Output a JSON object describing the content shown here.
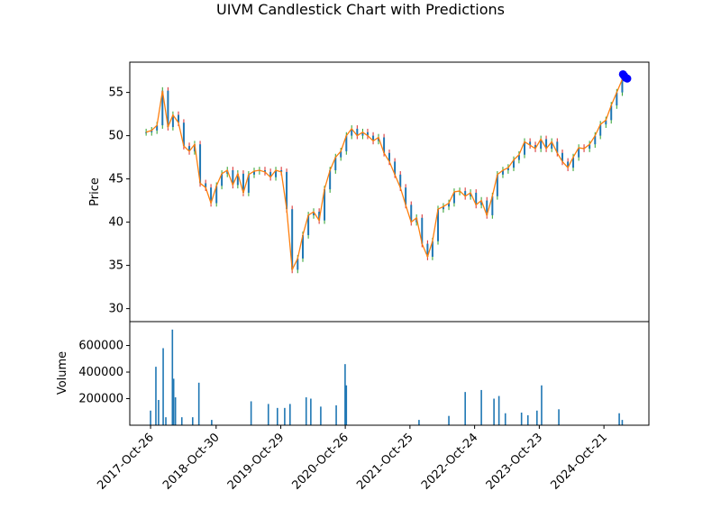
{
  "chart_data": {
    "type": "candlestick",
    "title": "UIVM Candlestick Chart with Predictions",
    "price_panel": {
      "ylabel": "Price",
      "ylim": [
        28.5,
        58.5
      ],
      "yticks": [
        30,
        35,
        40,
        45,
        50,
        55
      ],
      "close_series": [
        [
          "2017-10-01",
          50.4
        ],
        [
          "2017-11-01",
          50.6
        ],
        [
          "2017-12-01",
          51.2
        ],
        [
          "2018-01-01",
          55.2
        ],
        [
          "2018-02-01",
          51.0
        ],
        [
          "2018-03-01",
          52.4
        ],
        [
          "2018-04-01",
          51.5
        ],
        [
          "2018-05-01",
          48.8
        ],
        [
          "2018-06-01",
          48.2
        ],
        [
          "2018-07-01",
          49.0
        ],
        [
          "2018-08-01",
          44.5
        ],
        [
          "2018-09-01",
          44.0
        ],
        [
          "2018-10-01",
          42.2
        ],
        [
          "2018-11-01",
          44.2
        ],
        [
          "2018-12-01",
          45.6
        ],
        [
          "2019-01-01",
          46.0
        ],
        [
          "2019-02-01",
          44.3
        ],
        [
          "2019-03-01",
          45.6
        ],
        [
          "2019-04-01",
          43.4
        ],
        [
          "2019-05-01",
          45.5
        ],
        [
          "2019-06-01",
          45.9
        ],
        [
          "2019-07-01",
          46.0
        ],
        [
          "2019-08-01",
          45.8
        ],
        [
          "2019-09-01",
          45.2
        ],
        [
          "2019-10-01",
          46.0
        ],
        [
          "2019-11-01",
          45.8
        ],
        [
          "2019-12-01",
          41.5
        ],
        [
          "2020-01-01",
          34.5
        ],
        [
          "2020-02-01",
          35.8
        ],
        [
          "2020-03-01",
          38.5
        ],
        [
          "2020-04-01",
          40.8
        ],
        [
          "2020-05-01",
          41.2
        ],
        [
          "2020-06-01",
          40.2
        ],
        [
          "2020-07-01",
          43.8
        ],
        [
          "2020-08-01",
          46.0
        ],
        [
          "2020-09-01",
          47.5
        ],
        [
          "2020-10-01",
          48.2
        ],
        [
          "2020-11-01",
          50.0
        ],
        [
          "2020-12-01",
          50.8
        ],
        [
          "2021-01-01",
          50.0
        ],
        [
          "2021-02-01",
          50.4
        ],
        [
          "2021-03-01",
          50.0
        ],
        [
          "2021-04-01",
          49.4
        ],
        [
          "2021-05-01",
          49.8
        ],
        [
          "2021-06-01",
          48.0
        ],
        [
          "2021-07-01",
          47.0
        ],
        [
          "2021-08-01",
          45.5
        ],
        [
          "2021-09-01",
          44.0
        ],
        [
          "2021-10-01",
          42.0
        ],
        [
          "2021-11-01",
          40.0
        ],
        [
          "2021-12-01",
          40.5
        ],
        [
          "2022-01-01",
          37.5
        ],
        [
          "2022-02-01",
          36.0
        ],
        [
          "2022-03-01",
          37.8
        ],
        [
          "2022-04-01",
          41.5
        ],
        [
          "2022-05-01",
          41.8
        ],
        [
          "2022-06-01",
          42.2
        ],
        [
          "2022-07-01",
          43.5
        ],
        [
          "2022-08-01",
          43.6
        ],
        [
          "2022-09-01",
          43.0
        ],
        [
          "2022-10-01",
          43.4
        ],
        [
          "2022-11-01",
          42.0
        ],
        [
          "2022-12-01",
          42.5
        ],
        [
          "2023-01-01",
          40.8
        ],
        [
          "2023-02-01",
          43.0
        ],
        [
          "2023-03-01",
          45.5
        ],
        [
          "2023-04-01",
          46.0
        ],
        [
          "2023-05-01",
          46.3
        ],
        [
          "2023-06-01",
          47.2
        ],
        [
          "2023-07-01",
          47.8
        ],
        [
          "2023-08-01",
          49.3
        ],
        [
          "2023-09-01",
          48.9
        ],
        [
          "2023-10-01",
          48.5
        ],
        [
          "2023-11-01",
          49.6
        ],
        [
          "2023-12-01",
          48.5
        ],
        [
          "2024-01-01",
          49.3
        ],
        [
          "2024-02-01",
          48.0
        ],
        [
          "2024-03-01",
          47.0
        ],
        [
          "2024-04-01",
          46.3
        ],
        [
          "2024-05-01",
          47.5
        ],
        [
          "2024-06-01",
          48.6
        ],
        [
          "2024-07-01",
          48.5
        ],
        [
          "2024-08-01",
          49.0
        ],
        [
          "2024-09-01",
          50.0
        ],
        [
          "2024-10-01",
          51.3
        ],
        [
          "2024-11-01",
          51.8
        ],
        [
          "2024-12-01",
          53.5
        ],
        [
          "2025-01-01",
          55.0
        ],
        [
          "2025-02-01",
          56.5
        ]
      ],
      "predictions": [
        [
          "2025-02-05",
          57.1
        ],
        [
          "2025-02-12",
          56.9
        ],
        [
          "2025-02-20",
          56.7
        ],
        [
          "2025-03-01",
          56.6
        ]
      ]
    },
    "volume_panel": {
      "ylabel": "Volume",
      "ylim": [
        0,
        780000
      ],
      "yticks": [
        200000,
        400000,
        600000
      ],
      "ytick_labels": [
        "200000",
        "400000",
        "600000"
      ],
      "bars": [
        [
          "2017-10-26",
          110000
        ],
        [
          "2017-11-25",
          440000
        ],
        [
          "2017-12-10",
          190000
        ],
        [
          "2018-01-05",
          580000
        ],
        [
          "2018-01-20",
          60000
        ],
        [
          "2018-02-26",
          720000
        ],
        [
          "2018-03-05",
          350000
        ],
        [
          "2018-03-15",
          210000
        ],
        [
          "2018-04-20",
          60000
        ],
        [
          "2018-06-20",
          60000
        ],
        [
          "2018-07-25",
          320000
        ],
        [
          "2018-10-05",
          40000
        ],
        [
          "2019-05-15",
          180000
        ],
        [
          "2019-08-20",
          160000
        ],
        [
          "2019-10-10",
          130000
        ],
        [
          "2019-11-20",
          130000
        ],
        [
          "2019-12-20",
          160000
        ],
        [
          "2020-03-20",
          210000
        ],
        [
          "2020-04-15",
          200000
        ],
        [
          "2020-06-10",
          140000
        ],
        [
          "2020-09-05",
          150000
        ],
        [
          "2020-10-25",
          460000
        ],
        [
          "2020-11-01",
          300000
        ],
        [
          "2021-12-15",
          40000
        ],
        [
          "2022-06-01",
          70000
        ],
        [
          "2022-09-01",
          250000
        ],
        [
          "2022-12-01",
          265000
        ],
        [
          "2023-02-10",
          200000
        ],
        [
          "2023-03-10",
          220000
        ],
        [
          "2023-04-15",
          90000
        ],
        [
          "2023-07-15",
          95000
        ],
        [
          "2023-08-20",
          75000
        ],
        [
          "2023-10-10",
          110000
        ],
        [
          "2023-11-05",
          300000
        ],
        [
          "2024-02-10",
          120000
        ],
        [
          "2025-01-15",
          90000
        ],
        [
          "2025-02-01",
          40000
        ]
      ]
    },
    "x_axis": {
      "tick_labels": [
        "2017-Oct-26",
        "2018-Oct-30",
        "2019-Oct-29",
        "2020-Oct-26",
        "2021-Oct-25",
        "2022-Oct-24",
        "2023-Oct-23",
        "2024-Oct-21"
      ],
      "range": [
        "2017-07-01",
        "2025-07-01"
      ]
    },
    "colors": {
      "close_line": "#ff7f0e",
      "body": "#1f77b4",
      "wick_up": "#2ca02c",
      "wick_down": "#d62728",
      "volume": "#1f77b4",
      "prediction": "#0000ff"
    }
  }
}
